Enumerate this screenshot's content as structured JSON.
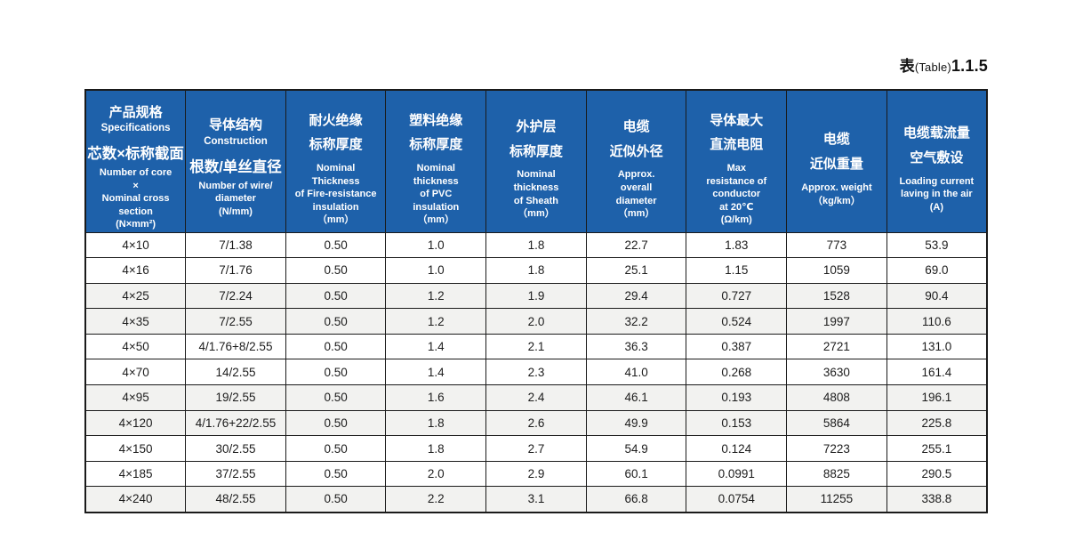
{
  "caption": {
    "zh": "表",
    "en": "(Table)",
    "num": "1.1.5"
  },
  "colors": {
    "header_bg": "#1e61aa",
    "header_text": "#ffffff",
    "row_alt_bg": "#f2f2f0",
    "border": "#1a1a1a"
  },
  "table": {
    "columns": [
      {
        "zh_title": [
          "产品规格"
        ],
        "en_title": [
          "Specifications"
        ],
        "zh_sub": [
          "芯数×标称截面"
        ],
        "en_sub": [
          "Number of core",
          "×",
          "Nominal cross",
          "section",
          "(N×mm²)"
        ]
      },
      {
        "zh_title": [
          "导体结构"
        ],
        "en_title": [
          "Construction"
        ],
        "zh_sub": [
          "根数/单丝直径"
        ],
        "en_sub": [
          "Number of wire/",
          "diameter",
          "(N/mm)"
        ]
      },
      {
        "zh_title": [
          "耐火绝缘",
          "标称厚度"
        ],
        "en_sub": [
          "Nominal",
          "Thickness",
          "of Fire-resistance",
          "insulation",
          "（mm）"
        ]
      },
      {
        "zh_title": [
          "塑料绝缘",
          "标称厚度"
        ],
        "en_sub": [
          "Nominal",
          "thickness",
          "of PVC",
          "insulation",
          "（mm）"
        ]
      },
      {
        "zh_title": [
          "外护层",
          "标称厚度"
        ],
        "en_sub": [
          "Nominal",
          "thickness",
          "of Sheath",
          "（mm）"
        ]
      },
      {
        "zh_title": [
          "电缆",
          "近似外径"
        ],
        "en_sub": [
          "Approx.",
          "overall",
          "diameter",
          "（mm）"
        ]
      },
      {
        "zh_title": [
          "导体最大",
          "直流电阻"
        ],
        "en_sub": [
          "Max",
          "resistance  of",
          "conductor",
          "at 20℃",
          "(Ω/km)"
        ]
      },
      {
        "zh_title": [
          "电缆",
          "近似重量"
        ],
        "en_sub": [
          "Approx. weight",
          "（kg/km）"
        ]
      },
      {
        "zh_title": [
          "电缆载流量",
          "空气敷设"
        ],
        "en_sub": [
          "Loading current",
          "laving in the air",
          "(A)"
        ]
      }
    ],
    "rows": [
      [
        "4×10",
        "7/1.38",
        "0.50",
        "1.0",
        "1.8",
        "22.7",
        "1.83",
        "773",
        "53.9"
      ],
      [
        "4×16",
        "7/1.76",
        "0.50",
        "1.0",
        "1.8",
        "25.1",
        "1.15",
        "1059",
        "69.0"
      ],
      [
        "4×25",
        "7/2.24",
        "0.50",
        "1.2",
        "1.9",
        "29.4",
        "0.727",
        "1528",
        "90.4"
      ],
      [
        "4×35",
        "7/2.55",
        "0.50",
        "1.2",
        "2.0",
        "32.2",
        "0.524",
        "1997",
        "110.6"
      ],
      [
        "4×50",
        "4/1.76+8/2.55",
        "0.50",
        "1.4",
        "2.1",
        "36.3",
        "0.387",
        "2721",
        "131.0"
      ],
      [
        "4×70",
        "14/2.55",
        "0.50",
        "1.4",
        "2.3",
        "41.0",
        "0.268",
        "3630",
        "161.4"
      ],
      [
        "4×95",
        "19/2.55",
        "0.50",
        "1.6",
        "2.4",
        "46.1",
        "0.193",
        "4808",
        "196.1"
      ],
      [
        "4×120",
        "4/1.76+22/2.55",
        "0.50",
        "1.8",
        "2.6",
        "49.9",
        "0.153",
        "5864",
        "225.8"
      ],
      [
        "4×150",
        "30/2.55",
        "0.50",
        "1.8",
        "2.7",
        "54.9",
        "0.124",
        "7223",
        "255.1"
      ],
      [
        "4×185",
        "37/2.55",
        "0.50",
        "2.0",
        "2.9",
        "60.1",
        "0.0991",
        "8825",
        "290.5"
      ],
      [
        "4×240",
        "48/2.55",
        "0.50",
        "2.2",
        "3.1",
        "66.8",
        "0.0754",
        "11255",
        "338.8"
      ]
    ]
  }
}
